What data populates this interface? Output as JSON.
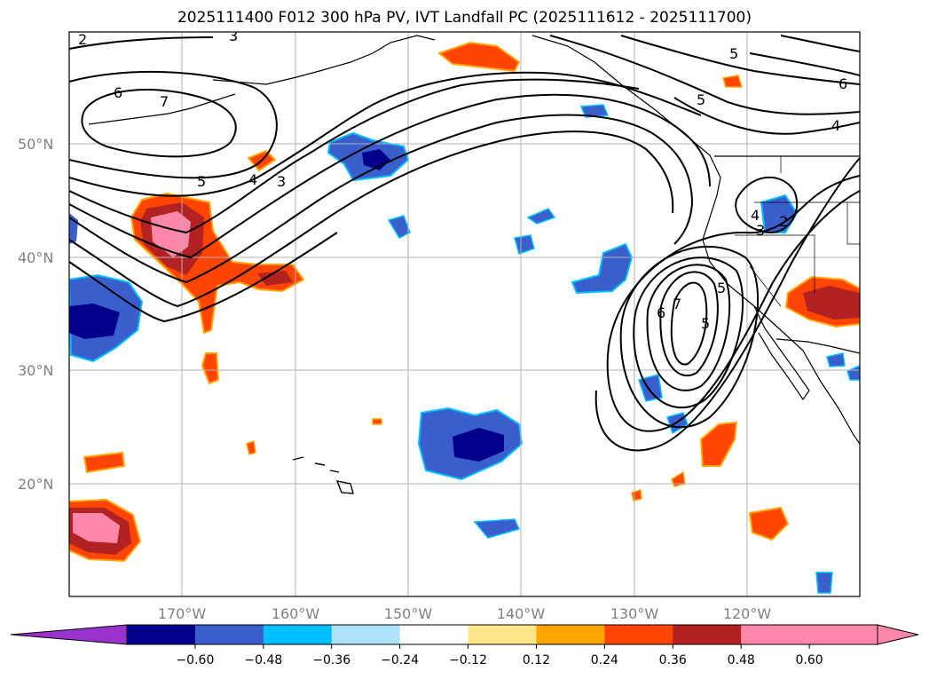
{
  "title": "2025111400 F012 300 hPa PV, IVT Landfall PC (2025111612 - 2025111700)",
  "latitude_labels": [
    "50°N",
    "40°N",
    "30°N",
    "20°N"
  ],
  "longitude_labels": [
    "170°W",
    "160°W",
    "150°W",
    "140°W",
    "130°W",
    "120°W"
  ],
  "colorbar": {
    "tick_labels": [
      "−0.60",
      "−0.48",
      "−0.36",
      "−0.24",
      "−0.12",
      "0.12",
      "0.24",
      "0.36",
      "0.48",
      "0.60"
    ],
    "colors": [
      "#9933cc",
      "#00008b",
      "#3a5fcd",
      "#00bfff",
      "#aee2f8",
      "#ffffff",
      "#ffe68a",
      "#ffa500",
      "#ff4500",
      "#b22222",
      "#ff88aa",
      "#ff88aa"
    ]
  },
  "contour_labels": [
    "2",
    "3",
    "5",
    "6",
    "7",
    "5",
    "4",
    "3",
    "5",
    "5",
    "6",
    "4",
    "3",
    "4",
    "2",
    "7",
    "6",
    "5"
  ],
  "colors": {
    "coast": "#000000",
    "grid": "#b0b0b0",
    "contour": "#000000"
  }
}
